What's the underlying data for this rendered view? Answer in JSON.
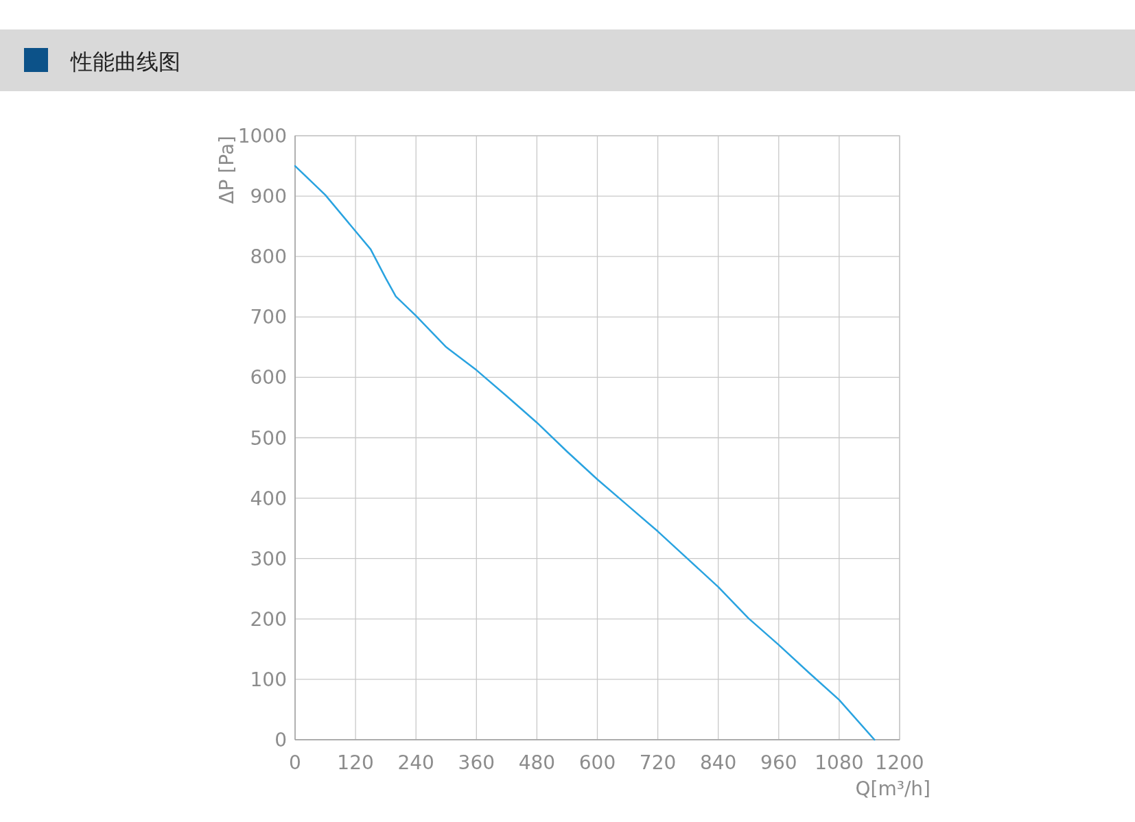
{
  "chart_data": {
    "type": "line",
    "title": "性能曲线图",
    "xlabel": "Q[m³/h]",
    "ylabel": "ΔP [Pa]",
    "x": [
      0,
      60,
      120,
      150,
      180,
      200,
      240,
      300,
      360,
      420,
      480,
      540,
      600,
      660,
      720,
      780,
      840,
      900,
      960,
      1020,
      1080,
      1150
    ],
    "series": [
      {
        "color": "#29a3e0",
        "values": [
          950,
          902,
          842,
          812,
          764,
          734,
          702,
          650,
          612,
          569,
          525,
          477,
          431,
          388,
          345,
          299,
          253,
          201,
          157,
          111,
          66,
          0
        ]
      }
    ],
    "xlim": [
      0,
      1200
    ],
    "ylim": [
      0,
      1000
    ],
    "xticks": [
      0,
      120,
      240,
      360,
      480,
      600,
      720,
      840,
      960,
      1080,
      1200
    ],
    "yticks": [
      0,
      100,
      200,
      300,
      400,
      500,
      600,
      700,
      800,
      900,
      1000
    ],
    "grid": true
  }
}
